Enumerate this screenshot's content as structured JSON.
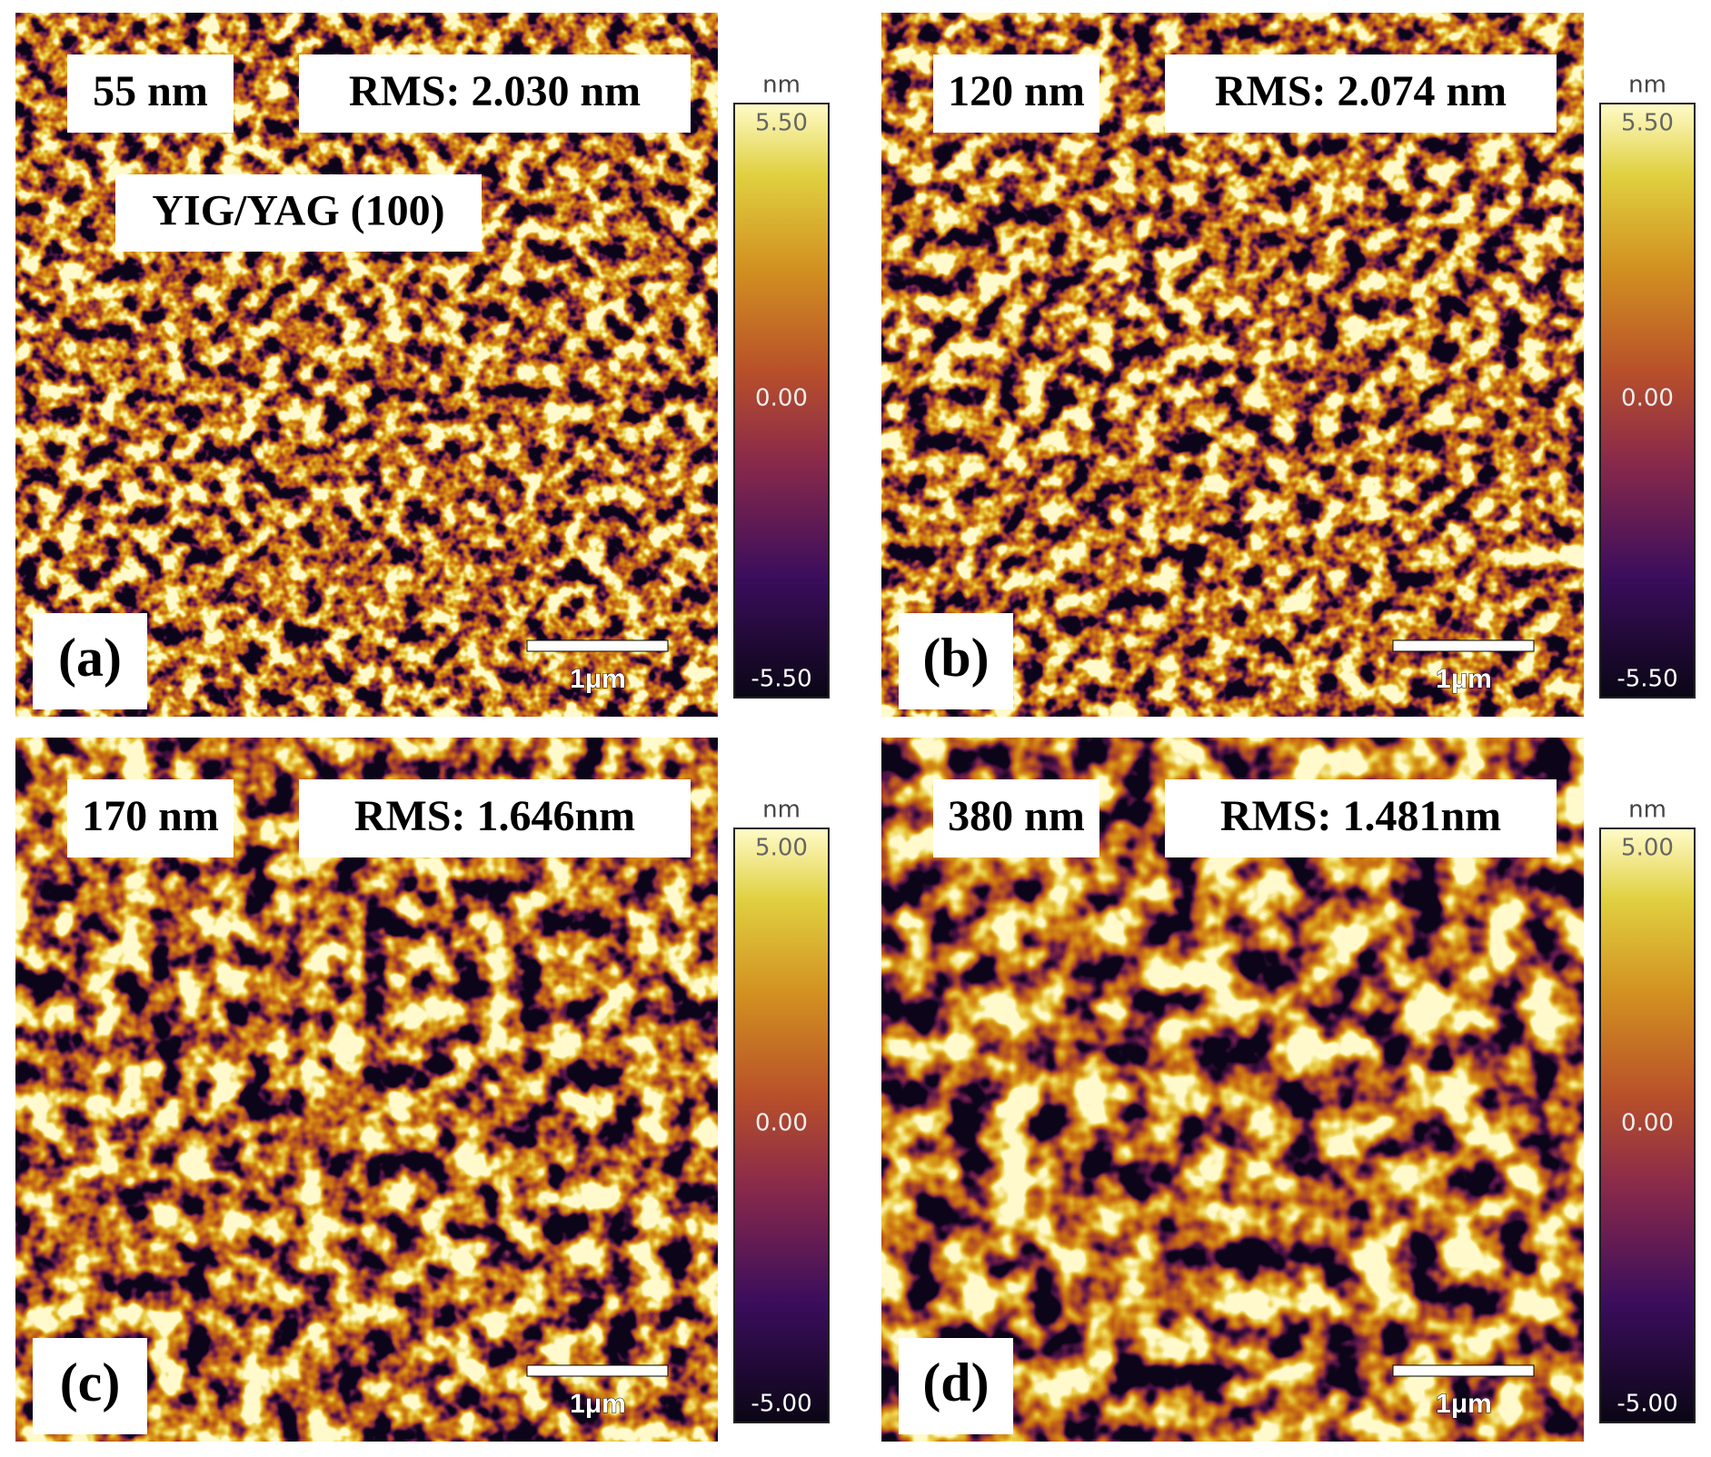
{
  "panels": [
    {
      "thickness": "55 nm",
      "rms": "RMS: 2.030 nm",
      "note": "YIG/YAG (100)",
      "letter": "(a)",
      "scale_bar": "1μm",
      "colorbar": {
        "unit": "nm",
        "max": "5.50",
        "mid": "0.00",
        "min": "-5.50"
      }
    },
    {
      "thickness": "120 nm",
      "rms": "RMS: 2.074 nm",
      "letter": "(b)",
      "scale_bar": "1μm",
      "colorbar": {
        "unit": "nm",
        "max": "5.50",
        "mid": "0.00",
        "min": "-5.50"
      }
    },
    {
      "thickness": "170 nm",
      "rms": "RMS: 1.646nm",
      "letter": "(c)",
      "scale_bar": "1μm",
      "colorbar": {
        "unit": "nm",
        "max": "5.00",
        "mid": "0.00",
        "min": "-5.00"
      }
    },
    {
      "thickness": "380 nm",
      "rms": "RMS: 1.481nm",
      "letter": "(d)",
      "scale_bar": "1μm",
      "colorbar": {
        "unit": "nm",
        "max": "5.00",
        "mid": "0.00",
        "min": "-5.00"
      }
    }
  ]
}
